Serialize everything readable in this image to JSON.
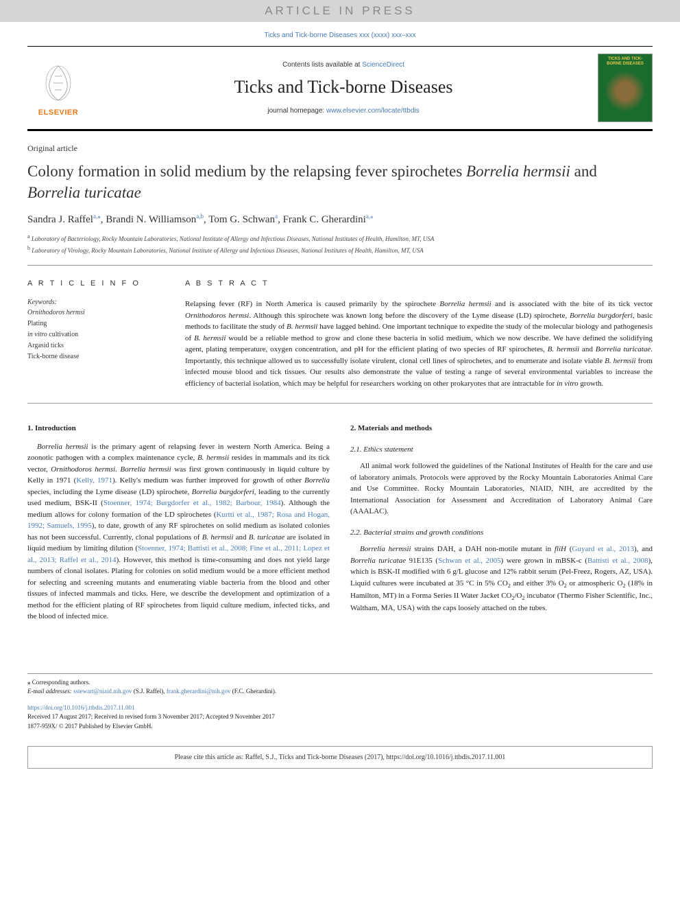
{
  "banner": "ARTICLE IN PRESS",
  "citation_top": "Ticks and Tick-borne Diseases xxx (xxxx) xxx–xxx",
  "contents_line_prefix": "Contents lists available at ",
  "contents_link": "ScienceDirect",
  "journal_title": "Ticks and Tick-borne Diseases",
  "homepage_prefix": "journal homepage: ",
  "homepage_url": "www.elsevier.com/locate/ttbdis",
  "cover_title": "TICKS AND TICK-BORNE DISEASES",
  "elsevier": "ELSEVIER",
  "article_type": "Original article",
  "title_html": "Colony formation in solid medium by the relapsing fever spirochetes <em>Borrelia hermsii</em> and <em>Borrelia turicatae</em>",
  "authors": [
    {
      "name": "Sandra J. Raffel",
      "sup": "a,⁎"
    },
    {
      "name": "Brandi N. Williamson",
      "sup": "a,b"
    },
    {
      "name": "Tom G. Schwan",
      "sup": "a"
    },
    {
      "name": "Frank C. Gherardini",
      "sup": "a,⁎"
    }
  ],
  "affiliations": [
    {
      "sup": "a",
      "text": "Laboratory of Bacteriology, Rocky Mountain Laboratories, National Institute of Allergy and Infectious Diseases, National Institutes of Health, Hamilton, MT, USA"
    },
    {
      "sup": "b",
      "text": "Laboratory of Virology, Rocky Mountain Laboratories, National Institute of Allergy and Infectious Diseases, National Institutes of Health, Hamilton, MT, USA"
    }
  ],
  "article_info_head": "A R T I C L E  I N F O",
  "keywords_label": "Keywords:",
  "keywords_html": "<em>Ornithodoros hermsi</em><br>Plating<br><em>in vitro</em> cultivation<br>Argasid ticks<br>Tick-borne disease",
  "abstract_head": "A B S T R A C T",
  "abstract_html": "Relapsing fever (RF) in North America is caused primarily by the spirochete <em>Borrelia hermsii</em> and is associated with the bite of its tick vector <em>Ornithodoros hermsi</em>. Although this spirochete was known long before the discovery of the Lyme disease (LD) spirochete, <em>Borrelia burgdorferi</em>, basic methods to facilitate the study of <em>B. hermsii</em> have lagged behind. One important technique to expedite the study of the molecular biology and pathogenesis of <em>B. hermsii</em> would be a reliable method to grow and clone these bacteria in solid medium, which we now describe. We have defined the solidifying agent, plating temperature, oxygen concentration, and pH for the efficient plating of two species of RF spirochetes, <em>B. hermsii</em> and <em>Borrelia turicatae</em>. Importantly, this technique allowed us to successfully isolate virulent, clonal cell lines of spirochetes, and to enumerate and isolate viable <em>B. hermsii</em> from infected mouse blood and tick tissues. Our results also demonstrate the value of testing a range of several environmental variables to increase the efficiency of bacterial isolation, which may be helpful for researchers working on other prokaryotes that are intractable for <em>in vitro</em> growth.",
  "intro_heading": "1. Introduction",
  "intro_html": "<em>Borrelia hermsii</em> is the primary agent of relapsing fever in western North America. Being a zoonotic pathogen with a complex maintenance cycle, <em>B. hermsii</em> resides in mammals and its tick vector, <em>Ornithodoros hermsi</em>. <em>Borrelia hermsii</em> was first grown continuously in liquid culture by Kelly in 1971 (<a>Kelly, 1971</a>). Kelly's medium was further improved for growth of other <em>Borrelia</em> species, including the Lyme disease (LD) spirochete, <em>Borrelia burgdorferi</em>, leading to the currently used medium, BSK-II (<a>Stoenner, 1974; Burgdorfer et al., 1982; Barbour, 1984</a>). Although the medium allows for colony formation of the LD spirochetes (<a>Kurtti et al., 1987; Rosa and Hogan, 1992; Samuels, 1995</a>), to date, growth of any RF spirochetes on solid medium as isolated colonies has not been successful. Currently, clonal populations of <em>B. hermsii</em> and <em>B. turicatae</em> are isolated in liquid medium by limiting dilution (<a>Stoenner, 1974; Battisti et al., 2008; Fine et al., 2011; Lopez et al., 2013; Raffel et al., 2014</a>). However, this method is time-consuming and does not yield large numbers of clonal isolates. Plating for colonies on solid medium would be a more efficient method for selecting and screening mutants and enumerating viable bacteria from the blood and other tissues of infected mammals and ticks. Here, we describe the development and optimization of a method for the efficient plating of RF spirochetes from liquid culture medium, infected ticks, and the blood of infected mice.",
  "methods_heading": "2. Materials and methods",
  "ethics_heading": "2.1. Ethics statement",
  "ethics_text": "All animal work followed the guidelines of the National Institutes of Health for the care and use of laboratory animals. Protocols were approved by the Rocky Mountain Laboratories Animal Care and Use Committee. Rocky Mountain Laboratories, NIAID, NIH, are accredited by the International Association for Assessment and Accreditation of Laboratory Animal Care (AAALAC).",
  "strains_heading": "2.2. Bacterial strains and growth conditions",
  "strains_html": "<em>Borrelia hermsii</em> strains DAH, a DAH non-motile mutant in <em>fliH</em> (<a>Guyard et al., 2013</a>), and <em>Borrelia turicatae</em> 91E135 (<a>Schwan et al., 2005</a>) were grown in mBSK-c (<a>Battisti et al., 2008</a>), which is BSK-II modified with 6 g/L glucose and 12% rabbit serum (Pel-Freez, Rogers, AZ, USA). Liquid cultures were incubated at 35 °C in 5% CO<sub>2</sub> and either 3% O<sub>2</sub> or atmospheric O<sub>2</sub> (18% in Hamilton, MT) in a Forma Series II Water Jacket CO<sub>2</sub>/O<sub>2</sub> incubator (Thermo Fisher Scientific, Inc., Waltham, MA, USA) with the caps loosely attached on the tubes.",
  "footnote_corresponding": "⁎ Corresponding authors.",
  "footnote_email_label": "E-mail addresses:",
  "footnote_emails_html": "<a>sstewart@niaid.nih.gov</a> (S.J. Raffel), <a>frank.gherardini@nih.gov</a> (F.C. Gherardini).",
  "doi_link": "https://doi.org/10.1016/j.ttbdis.2017.11.001",
  "received_line": "Received 17 August 2017; Received in revised form 3 November 2017; Accepted 9 November 2017",
  "issn_line": "1877-959X/ © 2017 Published by Elsevier GmbH.",
  "cite_box": "Please cite this article as: Raffel, S.J., Ticks and Tick-borne Diseases (2017), https://doi.org/10.1016/j.ttbdis.2017.11.001",
  "colors": {
    "link": "#4a7ab5",
    "banner_bg": "#d5d5d5",
    "banner_text": "#888888",
    "elsevier_orange": "#e67817",
    "cover_green": "#1a6b2e",
    "cover_gold": "#e8c84a"
  }
}
